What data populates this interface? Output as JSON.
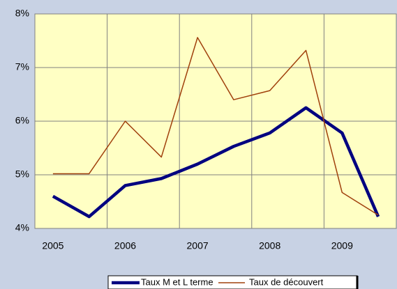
{
  "chart_data": {
    "type": "line",
    "categories": [
      "2005",
      null,
      "2006",
      null,
      "2007",
      null,
      "2008",
      null,
      "2009",
      null
    ],
    "series": [
      {
        "name": "Taux M et L terme",
        "color": "#000080",
        "values": [
          4.6,
          4.22,
          4.8,
          4.93,
          5.2,
          5.53,
          5.78,
          6.25,
          5.78,
          4.22
        ]
      },
      {
        "name": "Taux de découvert",
        "color": "#a0400c",
        "values": [
          5.02,
          5.02,
          6.0,
          5.33,
          7.56,
          6.4,
          6.57,
          7.32,
          4.67,
          4.25
        ]
      }
    ],
    "ylim": [
      4,
      8
    ],
    "yticks": [
      {
        "value": 4,
        "label": "4%"
      },
      {
        "value": 5,
        "label": "5%"
      },
      {
        "value": 6,
        "label": "6%"
      },
      {
        "value": 7,
        "label": "7%"
      },
      {
        "value": 8,
        "label": "8%"
      }
    ],
    "grid": true,
    "legend": "bottom"
  }
}
